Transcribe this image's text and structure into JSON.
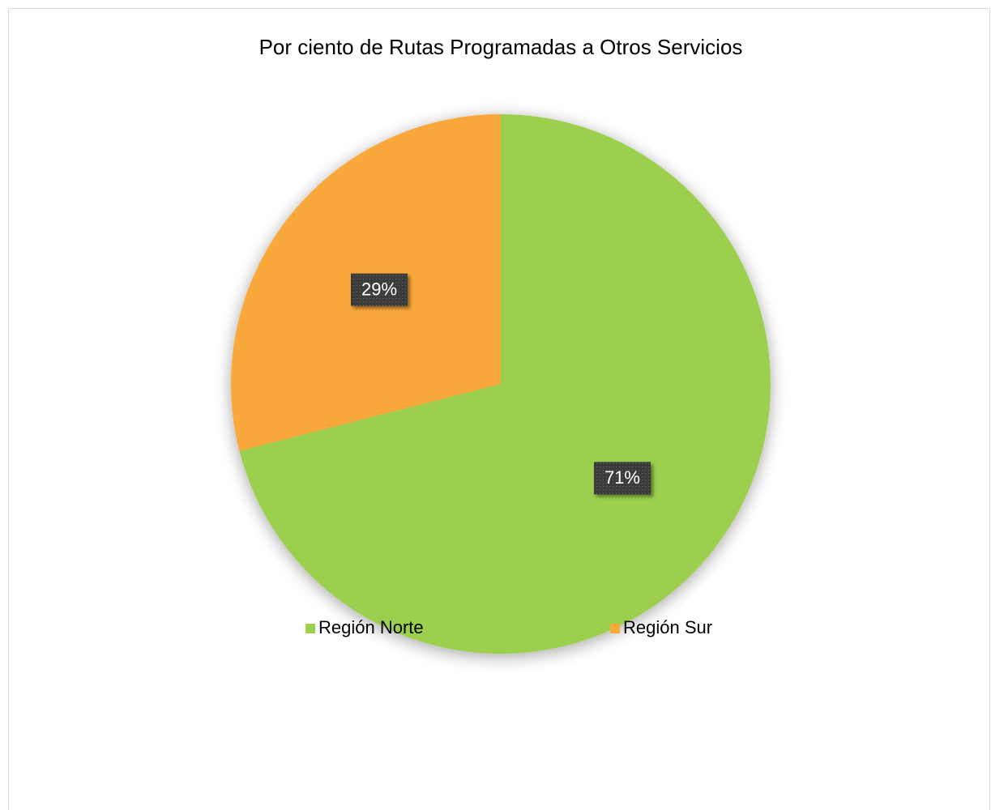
{
  "chart_data": {
    "type": "pie",
    "title": "Por ciento de Rutas Programadas a Otros Servicios",
    "categories": [
      "Región Norte",
      "Región Sur"
    ],
    "values": [
      71,
      29
    ],
    "value_labels": [
      "71%",
      "29%"
    ],
    "colors": [
      "#9ccf4e",
      "#f9a83a"
    ],
    "legend": "bottom"
  }
}
